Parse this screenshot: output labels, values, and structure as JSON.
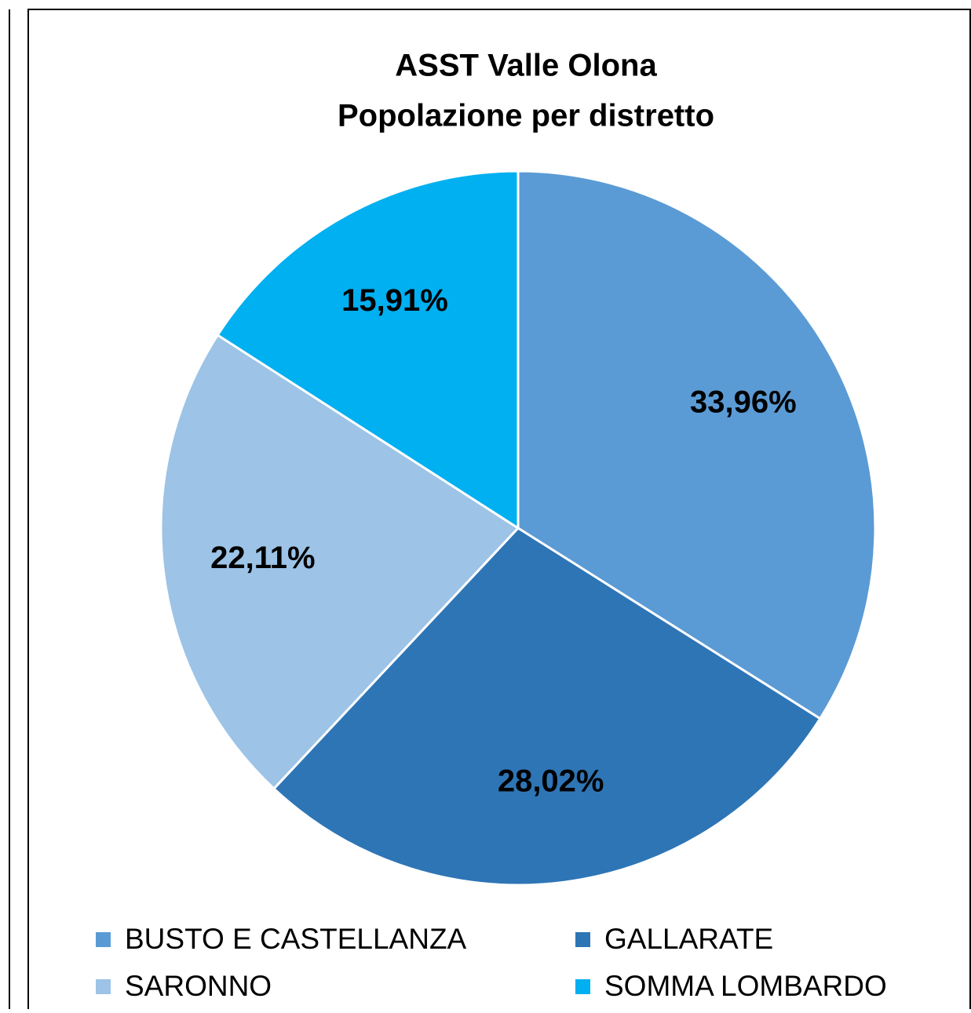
{
  "chart_data": {
    "type": "pie",
    "title": "ASST Valle Olona",
    "subtitle": "Popolazione per distretto",
    "categories": [
      "BUSTO E CASTELLANZA",
      "GALLARATE",
      "SARONNO",
      "SOMMA LOMBARDO"
    ],
    "values": [
      33.96,
      28.02,
      22.11,
      15.91
    ],
    "value_labels": [
      "33,96%",
      "28,02%",
      "22,11%",
      "15,91%"
    ],
    "colors": [
      "#5b9bd5",
      "#2e75b6",
      "#9dc3e6",
      "#00b0f0"
    ],
    "legend": "bottom"
  }
}
